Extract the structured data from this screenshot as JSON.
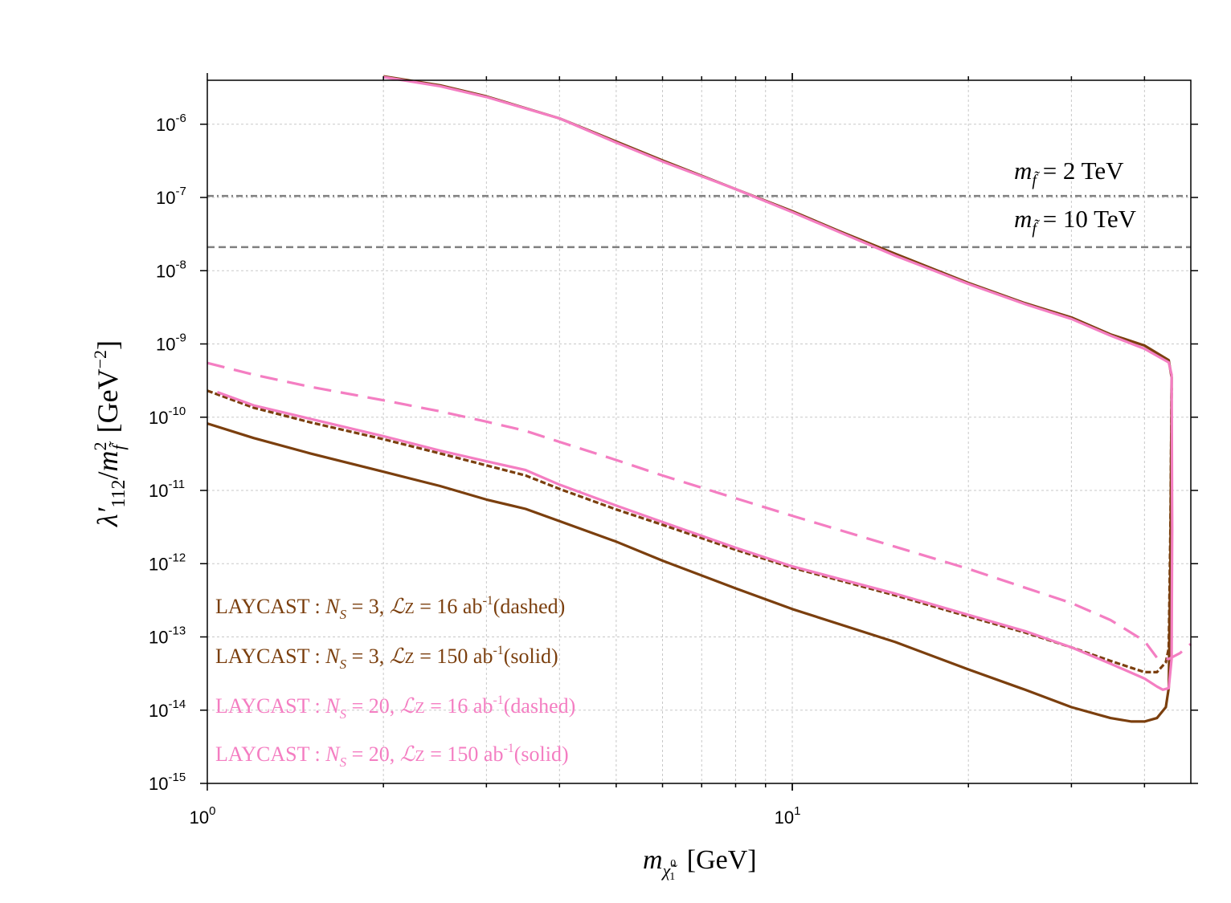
{
  "chart_data": {
    "type": "line",
    "xscale": "log",
    "yscale": "log",
    "xlim": [
      1,
      48
    ],
    "ylim_exp": [
      -15,
      -5.4
    ],
    "x_ticks": [
      {
        "base": "10",
        "exp": "0",
        "value": 1
      },
      {
        "base": "10",
        "exp": "1",
        "value": 10
      }
    ],
    "y_ticks": [
      {
        "base": "10",
        "exp": "-6",
        "value": -6
      },
      {
        "base": "10",
        "exp": "-7",
        "value": -7
      },
      {
        "base": "10",
        "exp": "-8",
        "value": -8
      },
      {
        "base": "10",
        "exp": "-9",
        "value": -9
      },
      {
        "base": "10",
        "exp": "-10",
        "value": -10
      },
      {
        "base": "10",
        "exp": "-11",
        "value": -11
      },
      {
        "base": "10",
        "exp": "-12",
        "value": -12
      },
      {
        "base": "10",
        "exp": "-13",
        "value": -13
      },
      {
        "base": "10",
        "exp": "-14",
        "value": -14
      },
      {
        "base": "10",
        "exp": "-15",
        "value": -15
      }
    ],
    "xlabel": {
      "m": "m",
      "sub": "χ̃",
      "sub_sup": "0",
      "sub_sub": "1",
      "unit": "[GeV]"
    },
    "ylabel": {
      "lambda": "λ′",
      "sub": "112",
      "slash": "/",
      "m": "m",
      "m_sup": "2",
      "m_sub": "f̃",
      "unit_open": "[GeV",
      "unit_sup": "−2",
      "unit_close": "]"
    },
    "grid": true,
    "reference_lines": [
      {
        "name": "2 TeV",
        "y": 1.05e-07,
        "style": "dash-dot",
        "color": "#808080",
        "label_m": "m",
        "label_sub": "f̃",
        "label_rest": " = 2 TeV"
      },
      {
        "name": "10 TeV",
        "y": 2.1e-08,
        "style": "dashed",
        "color": "#808080",
        "label_m": "m",
        "label_sub": "f̃",
        "label_rest": " = 10 TeV"
      }
    ],
    "series": [
      {
        "name": "LAYCAST : Ns = 3, Lz = 16 ab-1 (dashed)",
        "color": "#7b3f0e",
        "style": "short-dash",
        "points": [
          [
            1.0,
            2.3e-10
          ],
          [
            1.2,
            1.35e-10
          ],
          [
            1.5,
            8.5e-11
          ],
          [
            2.0,
            5e-11
          ],
          [
            2.5,
            3.2e-11
          ],
          [
            3.0,
            2.2e-11
          ],
          [
            3.5,
            1.6e-11
          ],
          [
            4.0,
            1.05e-11
          ],
          [
            5.0,
            5.5e-12
          ],
          [
            6.0,
            3.4e-12
          ],
          [
            8.0,
            1.55e-12
          ],
          [
            10.0,
            8.8e-13
          ],
          [
            15.0,
            3.7e-13
          ],
          [
            20.0,
            1.9e-13
          ],
          [
            25.0,
            1.15e-13
          ],
          [
            30.0,
            7.2e-14
          ],
          [
            35.0,
            4.7e-14
          ],
          [
            40.0,
            3.3e-14
          ],
          [
            42.0,
            3.3e-14
          ],
          [
            43.5,
            4.5e-14
          ],
          [
            44.0,
            7e-14
          ],
          [
            44.3,
            3e-12
          ],
          [
            44.5,
            2.5e-10
          ]
        ]
      },
      {
        "name": "LAYCAST : Ns = 3, Lz = 150 ab-1 (solid)",
        "color": "#7b3f0e",
        "style": "solid",
        "points": [
          [
            1.0,
            8.2e-11
          ],
          [
            1.2,
            5.2e-11
          ],
          [
            1.5,
            3.2e-11
          ],
          [
            2.0,
            1.8e-11
          ],
          [
            2.5,
            1.15e-11
          ],
          [
            3.0,
            7.5e-12
          ],
          [
            3.5,
            5.6e-12
          ],
          [
            4.0,
            3.8e-12
          ],
          [
            5.0,
            2e-12
          ],
          [
            6.0,
            1.1e-12
          ],
          [
            8.0,
            4.6e-13
          ],
          [
            10.0,
            2.4e-13
          ],
          [
            15.0,
            8.5e-14
          ],
          [
            20.0,
            3.6e-14
          ],
          [
            25.0,
            1.9e-14
          ],
          [
            30.0,
            1.1e-14
          ],
          [
            35.0,
            7.8e-15
          ],
          [
            38.0,
            7e-15
          ],
          [
            40.0,
            7e-15
          ],
          [
            42.0,
            7.8e-15
          ],
          [
            43.5,
            1.1e-14
          ],
          [
            44.0,
            2e-14
          ],
          [
            44.3,
            1e-12
          ],
          [
            44.5,
            3.5e-10
          ],
          [
            44.0,
            6e-10
          ],
          [
            40.0,
            9.5e-10
          ],
          [
            35.0,
            1.35e-09
          ],
          [
            30.0,
            2.3e-09
          ],
          [
            25.0,
            3.6e-09
          ],
          [
            20.0,
            6.8e-09
          ],
          [
            15.0,
            1.7e-08
          ],
          [
            12.0,
            3.5e-08
          ],
          [
            10.0,
            6.5e-08
          ],
          [
            8.0,
            1.3e-07
          ],
          [
            6.0,
            3.2e-07
          ],
          [
            5.0,
            5.8e-07
          ],
          [
            4.0,
            1.2e-06
          ],
          [
            3.0,
            2.4e-06
          ],
          [
            2.5,
            3.4e-06
          ],
          [
            2.0,
            4.5e-06
          ]
        ]
      },
      {
        "name": "LAYCAST : Ns = 20, Lz = 16 ab-1 (dashed)",
        "color": "#f47ec2",
        "style": "long-dash",
        "points": [
          [
            1.0,
            5.5e-10
          ],
          [
            1.2,
            3.8e-10
          ],
          [
            1.5,
            2.6e-10
          ],
          [
            2.0,
            1.7e-10
          ],
          [
            2.5,
            1.2e-10
          ],
          [
            3.0,
            8.7e-11
          ],
          [
            3.5,
            6.5e-11
          ],
          [
            4.0,
            4.6e-11
          ],
          [
            5.0,
            2.6e-11
          ],
          [
            6.0,
            1.6e-11
          ],
          [
            8.0,
            7.8e-12
          ],
          [
            10.0,
            4.5e-12
          ],
          [
            15.0,
            1.7e-12
          ],
          [
            20.0,
            8.5e-13
          ],
          [
            25.0,
            4.7e-13
          ],
          [
            30.0,
            2.9e-13
          ],
          [
            35.0,
            1.7e-13
          ],
          [
            40.0,
            8.8e-14
          ],
          [
            42.0,
            5.2e-14
          ],
          [
            44.0,
            5e-14
          ],
          [
            46.0,
            6e-14
          ],
          [
            48.0,
            8e-14
          ]
        ]
      },
      {
        "name": "LAYCAST : Ns = 20, Lz = 150 ab-1 (solid)",
        "color": "#f47ec2",
        "style": "solid",
        "points": [
          [
            1.04,
            2.2e-10
          ],
          [
            1.2,
            1.45e-10
          ],
          [
            1.5,
            9.5e-11
          ],
          [
            2.0,
            5.5e-11
          ],
          [
            2.5,
            3.5e-11
          ],
          [
            3.0,
            2.5e-11
          ],
          [
            3.5,
            1.9e-11
          ],
          [
            4.0,
            1.2e-11
          ],
          [
            5.0,
            6.2e-12
          ],
          [
            6.0,
            3.7e-12
          ],
          [
            8.0,
            1.65e-12
          ],
          [
            10.0,
            9.2e-13
          ],
          [
            15.0,
            3.9e-13
          ],
          [
            20.0,
            2e-13
          ],
          [
            25.0,
            1.2e-13
          ],
          [
            30.0,
            7.2e-14
          ],
          [
            35.0,
            4.3e-14
          ],
          [
            40.0,
            2.7e-14
          ],
          [
            42.0,
            2.1e-14
          ],
          [
            43.0,
            1.9e-14
          ],
          [
            44.0,
            2e-14
          ],
          [
            44.5,
            5e-14
          ],
          [
            44.6,
            3e-12
          ],
          [
            44.5,
            3.8e-10
          ],
          [
            44.0,
            5.6e-10
          ],
          [
            40.0,
            8.6e-10
          ],
          [
            35.0,
            1.3e-09
          ],
          [
            30.0,
            2.2e-09
          ],
          [
            25.0,
            3.5e-09
          ],
          [
            20.0,
            6.6e-09
          ],
          [
            15.0,
            1.6e-08
          ],
          [
            12.0,
            3.4e-08
          ],
          [
            10.0,
            6.3e-08
          ],
          [
            8.0,
            1.3e-07
          ],
          [
            6.0,
            3.1e-07
          ],
          [
            5.0,
            5.6e-07
          ],
          [
            4.0,
            1.2e-06
          ],
          [
            3.0,
            2.35e-06
          ],
          [
            2.5,
            3.3e-06
          ],
          [
            2.0,
            4.4e-06
          ]
        ]
      }
    ],
    "legend": [
      {
        "prefix": "LAYCAST : ",
        "N": "N",
        "N_sub": "S",
        "mid": " = 3,  ",
        "L": "ℒ",
        "Z": "Z",
        "mid2": " = 16 ab",
        "sup": "-1",
        "suffix": "(dashed)",
        "color": "#7b3f0e"
      },
      {
        "prefix": "LAYCAST : ",
        "N": "N",
        "N_sub": "S",
        "mid": " = 3, ",
        "L": "ℒ",
        "Z": "Z",
        "mid2": " = 150 ab",
        "sup": "-1",
        "suffix": "(solid)",
        "color": "#7b3f0e"
      },
      {
        "prefix": "LAYCAST : ",
        "N": "N",
        "N_sub": "S",
        "mid": " = 20,  ",
        "L": "ℒ",
        "Z": "Z",
        "mid2": " = 16 ab",
        "sup": "-1",
        "suffix": "(dashed)",
        "color": "#f47ec2"
      },
      {
        "prefix": "LAYCAST : ",
        "N": "N",
        "N_sub": "S",
        "mid": " = 20,  ",
        "L": "ℒ",
        "Z": "Z",
        "mid2": " = 150 ab",
        "sup": "-1",
        "suffix": "(solid)",
        "color": "#f47ec2"
      }
    ]
  }
}
